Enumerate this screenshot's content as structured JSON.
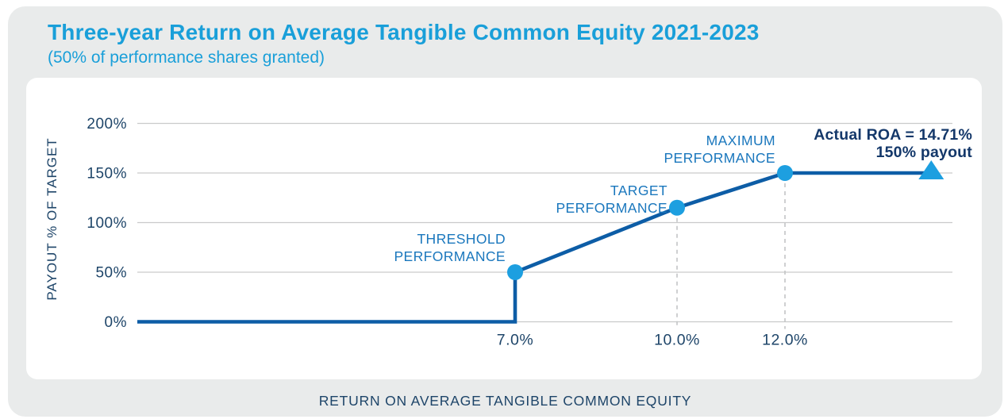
{
  "header": {
    "title": "Three-year Return on Average Tangible Common Equity 2021-2023",
    "subtitle": "(50% of performance shares granted)"
  },
  "chart_data": {
    "type": "line",
    "title": "Three-year Return on Average Tangible Common Equity 2021-2023",
    "subtitle": "(50% of performance shares granted)",
    "xlabel": "RETURN ON AVERAGE TANGIBLE COMMON EQUITY",
    "ylabel": "PAYOUT % OF TARGET",
    "xlim": [
      0,
      15.1
    ],
    "ylim": [
      0,
      200
    ],
    "grid": "horizontal-gridlines",
    "legend": false,
    "y_ticks": [
      {
        "value": 0,
        "label": "0%"
      },
      {
        "value": 50,
        "label": "50%"
      },
      {
        "value": 100,
        "label": "100%"
      },
      {
        "value": 150,
        "label": "150%"
      },
      {
        "value": 200,
        "label": "200%"
      }
    ],
    "x_ticks": [
      {
        "value": 7.0,
        "label": "7.0%"
      },
      {
        "value": 10.0,
        "label": "10.0%"
      },
      {
        "value": 12.0,
        "label": "12.0%"
      }
    ],
    "series": [
      {
        "name": "payout-schedule",
        "x": [
          0,
          7.0,
          7.0,
          10.0,
          12.0,
          14.71
        ],
        "y": [
          0,
          0,
          50,
          115,
          150,
          150
        ]
      }
    ],
    "markers": [
      {
        "name": "threshold",
        "shape": "circle",
        "x": 7.0,
        "y": 50,
        "label_lines": [
          "THRESHOLD",
          "PERFORMANCE"
        ]
      },
      {
        "name": "target",
        "shape": "circle",
        "x": 10.0,
        "y": 115,
        "label_lines": [
          "TARGET",
          "PERFORMANCE"
        ]
      },
      {
        "name": "maximum",
        "shape": "circle",
        "x": 12.0,
        "y": 150,
        "label_lines": [
          "MAXIMUM",
          "PERFORMANCE"
        ]
      },
      {
        "name": "actual",
        "shape": "triangle-up",
        "x": 14.71,
        "y": 150,
        "label_lines": []
      }
    ],
    "dashed_guides_x": [
      10.0,
      12.0
    ],
    "annotation": {
      "lines": [
        "Actual ROA = 14.71%",
        "150% payout"
      ]
    }
  },
  "colors": {
    "page_bg": "#ffffff",
    "card_bg": "#e9ebeb",
    "panel_bg": "#ffffff",
    "title": "#199fd9",
    "point_label_blue": "#1a77bd",
    "axis_navy": "#1e4569",
    "annotation_navy": "#14386a",
    "line_navy": "#0d5da6",
    "marker_cyan": "#1d9fe0",
    "gridline_gray": "#c9cacb",
    "dash_gray": "#c3c5c6"
  }
}
